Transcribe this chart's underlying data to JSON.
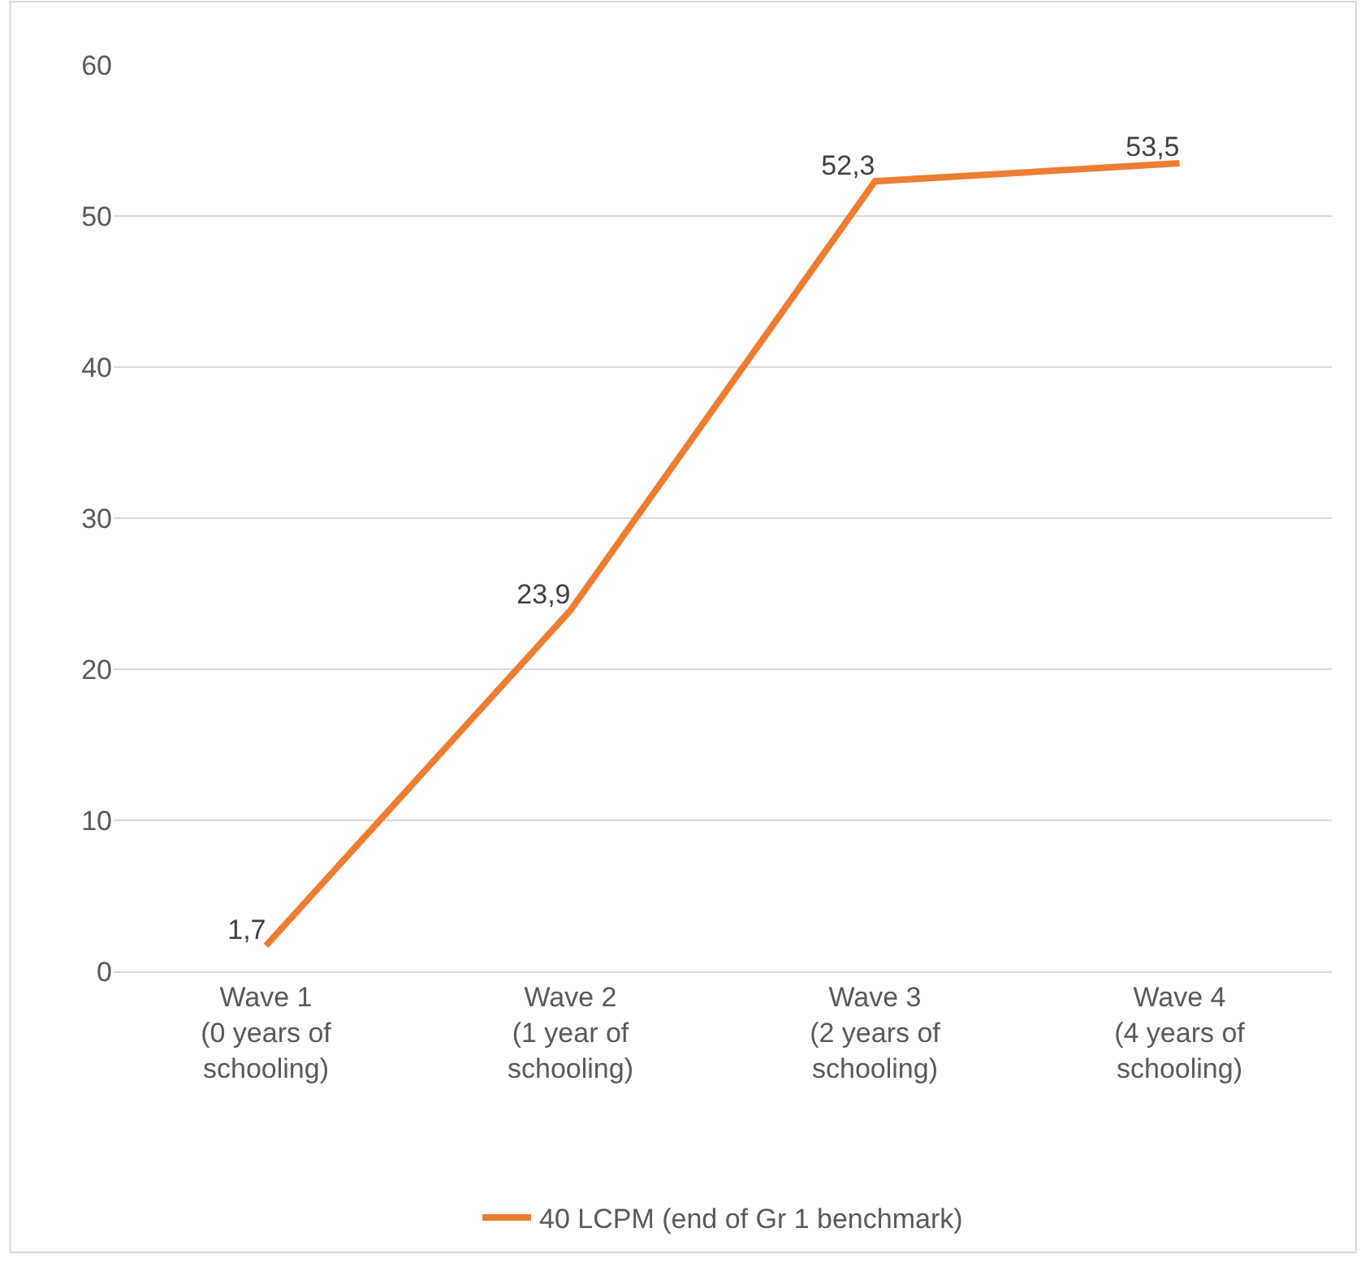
{
  "chart_data": {
    "type": "line",
    "categories": [
      "Wave 1\n(0 years of\nschooling)",
      "Wave 2\n(1 year of\nschooling)",
      "Wave 3\n(2 years of\nschooling)",
      "Wave 4\n(4 years of\nschooling)"
    ],
    "series": [
      {
        "name": "40 LCPM (end of Gr 1 benchmark)",
        "color": "#ed7d31",
        "values": [
          1.7,
          23.9,
          52.3,
          53.5
        ],
        "value_labels": [
          "1,7",
          "23,9",
          "52,3",
          "53,5"
        ]
      }
    ],
    "ylim": [
      0,
      60
    ],
    "yticks": [
      0,
      10,
      20,
      30,
      40,
      50,
      60
    ],
    "grid": "y",
    "legend": "bottom",
    "marker": "none",
    "line_style": "solid"
  }
}
